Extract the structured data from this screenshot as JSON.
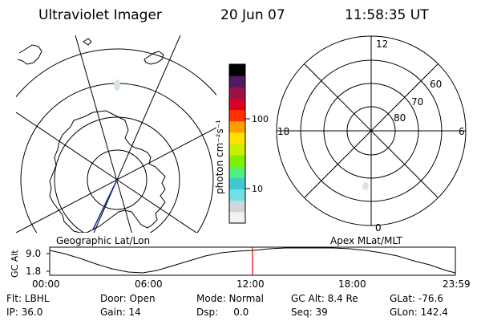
{
  "header": {
    "instrument": "Ultraviolet Imager",
    "date": "20 Jun 07",
    "time": "11:58:35 UT"
  },
  "geo_panel": {
    "label": "Geographic Lat/Lon"
  },
  "colorbar": {
    "unit_label": "photon cm⁻²s⁻¹",
    "ticks": [
      "100",
      "10"
    ],
    "scale": "log",
    "colors": [
      "#f2f2f2",
      "#cfd6dc",
      "#6fe0e6",
      "#3fc8d0",
      "#4ef07a",
      "#7ff000",
      "#c8f000",
      "#ffe000",
      "#ff9e00",
      "#ff3000",
      "#d8002a",
      "#9c1048",
      "#4e1a60",
      "#000000"
    ]
  },
  "polar_panel": {
    "label": "Apex MLat/MLT",
    "mlt_labels": {
      "top": "12",
      "bottom": "0",
      "left": "18",
      "right": "6"
    },
    "lat_labels": [
      "60",
      "70",
      "80"
    ]
  },
  "timeline": {
    "ylabel": "GC Alt",
    "y_ticks": [
      "9.0",
      "1.8"
    ],
    "x_ticks": [
      "00:00",
      "06:00",
      "12:00",
      "18:00",
      "23:59"
    ],
    "current_time_fraction": 0.4999,
    "marker_color": "#e00000"
  },
  "status": {
    "row1": [
      "Flt: LBHL",
      "Door: Open",
      "Mode: Normal",
      "GC Alt: 8.4 Re",
      "GLat: -76.6"
    ],
    "row2": [
      "IP: 36.0",
      "Gain: 14",
      "Dsp:     0.0",
      "Seq: 39",
      "GLon: 142.4"
    ]
  }
}
